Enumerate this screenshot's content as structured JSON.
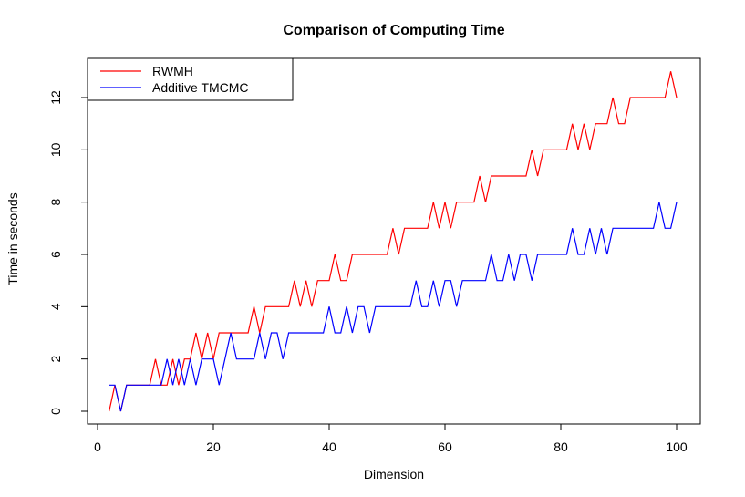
{
  "chart_data": {
    "type": "line",
    "title": "Comparison of Computing Time",
    "xlabel": "Dimension",
    "ylabel": "Time in seconds",
    "xlim": [
      0,
      100
    ],
    "ylim": [
      0,
      13
    ],
    "xticks": [
      0,
      20,
      40,
      60,
      80,
      100
    ],
    "yticks": [
      0,
      2,
      4,
      6,
      8,
      10,
      12
    ],
    "grid": false,
    "legend_position": "top-left",
    "x": [
      2,
      3,
      4,
      5,
      6,
      7,
      8,
      9,
      10,
      11,
      12,
      13,
      14,
      15,
      16,
      17,
      18,
      19,
      20,
      21,
      22,
      23,
      24,
      25,
      26,
      27,
      28,
      29,
      30,
      31,
      32,
      33,
      34,
      35,
      36,
      37,
      38,
      39,
      40,
      41,
      42,
      43,
      44,
      45,
      46,
      47,
      48,
      49,
      50,
      51,
      52,
      53,
      54,
      55,
      56,
      57,
      58,
      59,
      60,
      61,
      62,
      63,
      64,
      65,
      66,
      67,
      68,
      69,
      70,
      71,
      72,
      73,
      74,
      75,
      76,
      77,
      78,
      79,
      80,
      81,
      82,
      83,
      84,
      85,
      86,
      87,
      88,
      89,
      90,
      91,
      92,
      93,
      94,
      95,
      96,
      97,
      98,
      99,
      100
    ],
    "series": [
      {
        "name": "RWMH",
        "color": "#ff0000",
        "values": [
          0,
          1,
          0,
          1,
          1,
          1,
          1,
          1,
          2,
          1,
          1,
          2,
          1,
          2,
          2,
          3,
          2,
          3,
          2,
          3,
          3,
          3,
          3,
          3,
          3,
          4,
          3,
          4,
          4,
          4,
          4,
          4,
          5,
          4,
          5,
          4,
          5,
          5,
          5,
          6,
          5,
          5,
          6,
          6,
          6,
          6,
          6,
          6,
          6,
          7,
          6,
          7,
          7,
          7,
          7,
          7,
          8,
          7,
          8,
          7,
          8,
          8,
          8,
          8,
          9,
          8,
          9,
          9,
          9,
          9,
          9,
          9,
          9,
          10,
          9,
          10,
          10,
          10,
          10,
          10,
          11,
          10,
          11,
          10,
          11,
          11,
          11,
          12,
          11,
          11,
          12,
          12,
          12,
          12,
          12,
          12,
          12,
          13,
          12
        ]
      },
      {
        "name": "Additive TMCMC",
        "color": "#0000ff",
        "values": [
          1,
          1,
          0,
          1,
          1,
          1,
          1,
          1,
          1,
          1,
          2,
          1,
          2,
          1,
          2,
          1,
          2,
          2,
          2,
          1,
          2,
          3,
          2,
          2,
          2,
          2,
          3,
          2,
          3,
          3,
          2,
          3,
          3,
          3,
          3,
          3,
          3,
          3,
          4,
          3,
          3,
          4,
          3,
          4,
          4,
          3,
          4,
          4,
          4,
          4,
          4,
          4,
          4,
          5,
          4,
          4,
          5,
          4,
          5,
          5,
          4,
          5,
          5,
          5,
          5,
          5,
          6,
          5,
          5,
          6,
          5,
          6,
          6,
          5,
          6,
          6,
          6,
          6,
          6,
          6,
          7,
          6,
          6,
          7,
          6,
          7,
          6,
          7,
          7,
          7,
          7,
          7,
          7,
          7,
          7,
          8,
          7,
          7,
          8
        ]
      }
    ]
  }
}
